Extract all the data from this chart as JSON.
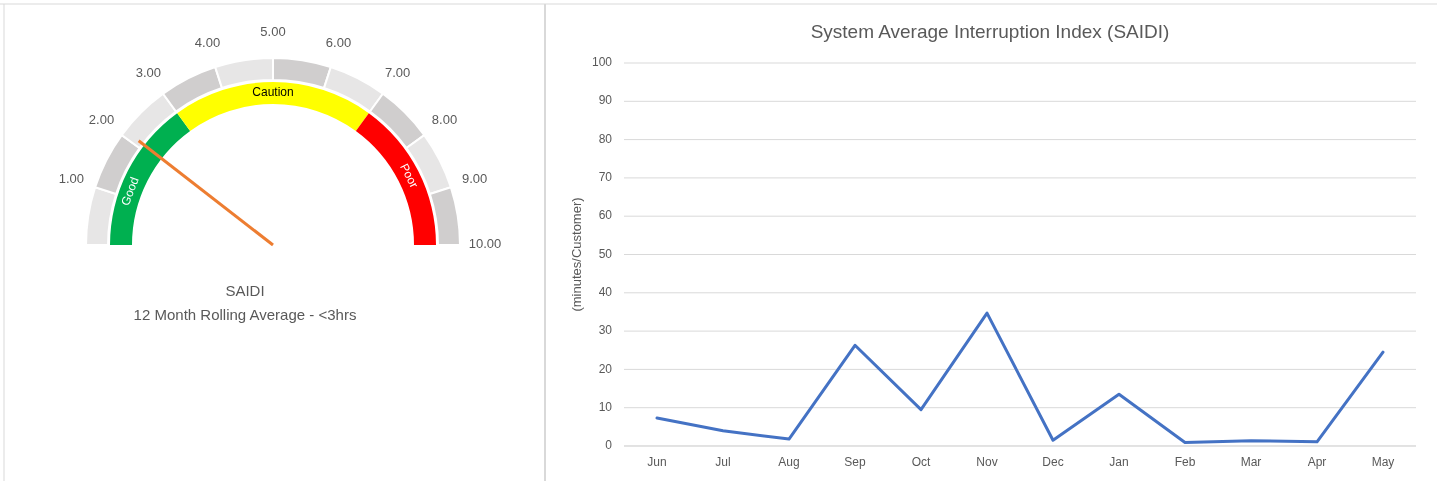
{
  "chart_data": [
    {
      "type": "donut",
      "title": "SAIDI",
      "subtitle": "12 Month  Rolling Average - <3hrs",
      "categories": [
        "Good",
        "Caution",
        "Poor"
      ],
      "values": [
        30,
        40,
        30
      ],
      "colors": [
        "#00b050",
        "#ffff00",
        "#ff0000"
      ],
      "needle": "Good",
      "annotations": [
        "1.00",
        "2.00",
        "3.00",
        "4.00",
        "5.00",
        "6.00",
        "7.00",
        "8.00",
        "9.00",
        "10.00"
      ]
    },
    {
      "type": "line",
      "title": "System Average Interruption Index (SAIDI)",
      "ylabel": "(minutes/Customer)",
      "categories": [
        "Jun",
        "Jul",
        "Aug",
        "Sep",
        "Oct",
        "Nov",
        "Dec",
        "Jan",
        "Feb",
        "Mar",
        "Apr",
        "May"
      ],
      "series": [
        {
          "color": "#4472c4",
          "values": [
            7.3,
            4,
            1.8,
            26.3,
            9.5,
            34.7,
            1.5,
            13.5,
            0.9,
            1.4,
            1.1,
            24.5
          ]
        }
      ],
      "ylim": [
        0,
        100
      ],
      "yticks": [
        0,
        10,
        20,
        30,
        40,
        50,
        60,
        70,
        80,
        90,
        100
      ],
      "grid": "y",
      "marker": "none"
    }
  ]
}
